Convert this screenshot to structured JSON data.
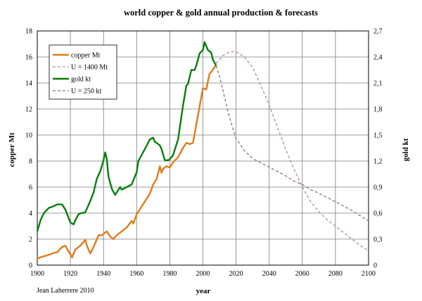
{
  "chart_data": {
    "type": "line",
    "title": "world copper & gold annual production & forecasts",
    "xlabel": "year",
    "ylabel": "copper Mt",
    "y2label": "gold kt",
    "credit": "Jean Laherrere 2010",
    "xlim": [
      1900,
      2100
    ],
    "ylim": [
      0,
      18
    ],
    "y2lim": [
      0,
      2.7
    ],
    "xticks": [
      1900,
      1920,
      1940,
      1960,
      1980,
      2000,
      2020,
      2040,
      2060,
      2080,
      2100
    ],
    "yticks": [
      0,
      2,
      4,
      6,
      8,
      10,
      12,
      14,
      16,
      18
    ],
    "y2ticks": [
      "0",
      "0,3",
      "0,6",
      "0,9",
      "1,2",
      "1,5",
      "1,8",
      "2,1",
      "2,4",
      "2,7"
    ],
    "grid": true,
    "legend_position": "top-left",
    "colors": {
      "copper": "#e07b1a",
      "gold": "#0a7d0a",
      "copper_forecast": "#b08aa0",
      "gold_forecast": "#8a6f86"
    },
    "series": [
      {
        "name": "copper Mt",
        "axis": "left",
        "style": "solid",
        "x": [
          1900,
          1903,
          1906,
          1909,
          1912,
          1915,
          1917,
          1919,
          1921,
          1923,
          1926,
          1929,
          1930,
          1932,
          1934,
          1937,
          1939,
          1942,
          1944,
          1946,
          1948,
          1950,
          1952,
          1954,
          1957,
          1958,
          1960,
          1962,
          1965,
          1968,
          1970,
          1972,
          1974,
          1975,
          1976,
          1978,
          1980,
          1982,
          1985,
          1988,
          1990,
          1992,
          1994,
          1996,
          1998,
          2000,
          2002,
          2004,
          2006,
          2008
        ],
        "y": [
          0.5,
          0.65,
          0.75,
          0.9,
          1.0,
          1.4,
          1.5,
          1.05,
          0.6,
          1.2,
          1.5,
          1.95,
          1.5,
          0.9,
          1.4,
          2.3,
          2.3,
          2.6,
          2.2,
          2.0,
          2.3,
          2.5,
          2.7,
          2.9,
          3.4,
          3.2,
          3.9,
          4.3,
          4.9,
          5.5,
          6.2,
          6.6,
          7.6,
          7.1,
          7.4,
          7.6,
          7.5,
          7.9,
          8.3,
          9.0,
          9.4,
          9.3,
          9.4,
          10.8,
          12.2,
          13.6,
          13.5,
          14.7,
          15.0,
          15.4
        ]
      },
      {
        "name": "U = 1400 Mt",
        "axis": "left",
        "style": "dashed",
        "x": [
          2008,
          2012,
          2016,
          2020,
          2025,
          2030,
          2035,
          2040,
          2045,
          2050,
          2055,
          2060,
          2065,
          2070,
          2075,
          2080,
          2085,
          2090,
          2095,
          2100
        ],
        "y": [
          15.5,
          16.1,
          16.4,
          16.4,
          16.0,
          15.2,
          13.8,
          12.3,
          10.6,
          8.9,
          7.4,
          6.0,
          4.9,
          4.1,
          3.5,
          3.0,
          2.5,
          2.0,
          1.5,
          1.1
        ]
      },
      {
        "name": "gold kt",
        "axis": "right",
        "style": "solid",
        "x": [
          1900,
          1902,
          1904,
          1907,
          1910,
          1912,
          1915,
          1917,
          1920,
          1922,
          1923,
          1925,
          1929,
          1932,
          1934,
          1936,
          1938,
          1940,
          1941,
          1942,
          1943,
          1945,
          1947,
          1950,
          1951,
          1954,
          1957,
          1960,
          1961,
          1965,
          1968,
          1970,
          1971,
          1972,
          1974,
          1975,
          1977,
          1979,
          1980,
          1982,
          1985,
          1988,
          1990,
          1991,
          1993,
          1995,
          1996,
          1998,
          2000,
          2001,
          2003,
          2005,
          2006,
          2008
        ],
        "y": [
          0.39,
          0.52,
          0.6,
          0.66,
          0.68,
          0.7,
          0.7,
          0.64,
          0.49,
          0.47,
          0.52,
          0.59,
          0.61,
          0.74,
          0.84,
          1.0,
          1.08,
          1.21,
          1.3,
          1.22,
          1.02,
          0.88,
          0.81,
          0.9,
          0.87,
          0.9,
          0.93,
          1.07,
          1.2,
          1.34,
          1.45,
          1.47,
          1.42,
          1.41,
          1.38,
          1.34,
          1.21,
          1.21,
          1.22,
          1.27,
          1.45,
          1.84,
          2.07,
          2.09,
          2.25,
          2.25,
          2.3,
          2.44,
          2.48,
          2.57,
          2.48,
          2.45,
          2.37,
          2.3
        ]
      },
      {
        "name": "U = 250 kt",
        "axis": "right",
        "style": "dashed",
        "x": [
          2008,
          2010,
          2012,
          2014,
          2016,
          2018,
          2020,
          2025,
          2030,
          2035,
          2040,
          2045,
          2050,
          2055,
          2060,
          2065,
          2070,
          2075,
          2080,
          2085,
          2090,
          2095,
          2100
        ],
        "y": [
          2.3,
          2.18,
          2.02,
          1.86,
          1.71,
          1.58,
          1.46,
          1.32,
          1.23,
          1.18,
          1.13,
          1.08,
          1.03,
          0.97,
          0.93,
          0.87,
          0.83,
          0.78,
          0.73,
          0.68,
          0.63,
          0.57,
          0.51
        ]
      }
    ]
  }
}
